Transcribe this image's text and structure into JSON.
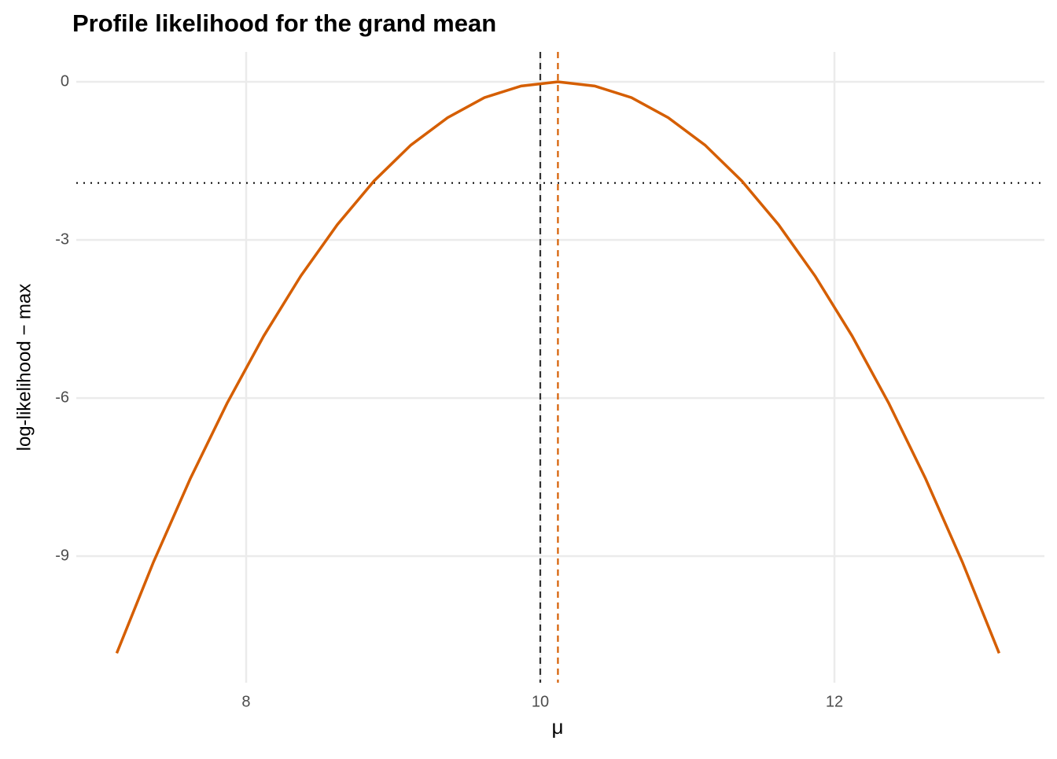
{
  "chart_data": {
    "type": "line",
    "title": "Profile likelihood for the grand mean",
    "x_label": "μ",
    "y_label": "log-likelihood − max",
    "x": [
      7.12,
      7.37,
      7.62,
      7.87,
      8.12,
      8.37,
      8.62,
      8.87,
      9.12,
      9.37,
      9.62,
      9.87,
      10.12,
      10.37,
      10.62,
      10.87,
      11.12,
      11.37,
      11.62,
      11.87,
      12.12,
      12.37,
      12.62,
      12.87,
      13.12
    ],
    "series": [
      {
        "color": "#d55e00",
        "values": [
          -10.84,
          -9.11,
          -7.53,
          -6.1,
          -4.82,
          -3.69,
          -2.71,
          -1.88,
          -1.2,
          -0.68,
          -0.3,
          -0.08,
          0,
          -0.08,
          -0.3,
          -0.68,
          -1.2,
          -1.88,
          -2.71,
          -3.69,
          -4.82,
          -6.1,
          -7.53,
          -9.11,
          -10.84
        ]
      }
    ],
    "vlines": [
      {
        "x": 10,
        "color": "#333333"
      },
      {
        "x": 10.12,
        "color": "#d55e00"
      }
    ],
    "hline": {
      "y": -1.92,
      "color": "#000000"
    },
    "xlim": [
      6.845,
      13.428
    ],
    "ylim": [
      -11.4,
      0.567
    ],
    "xticks": [
      8,
      10,
      12
    ],
    "yticks": [
      0,
      -3,
      -6,
      -9
    ],
    "grid": true
  }
}
